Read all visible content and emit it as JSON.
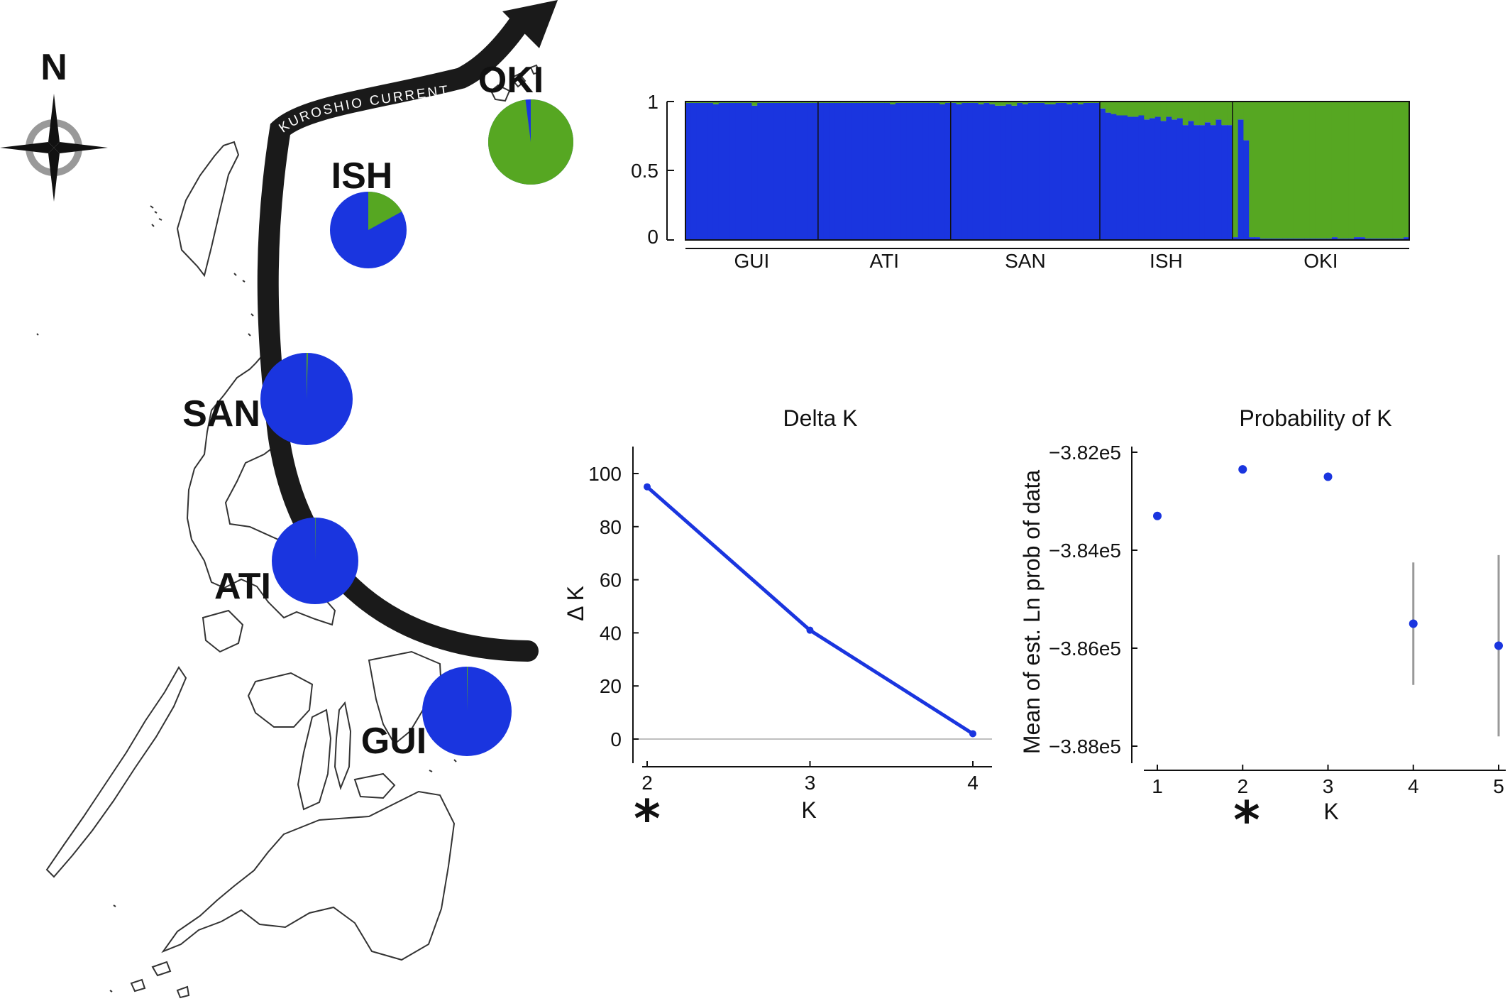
{
  "colors": {
    "cluster1": "#1a35df",
    "cluster2": "#56a722",
    "current": "#1a1a1a",
    "error_bar": "#999999"
  },
  "map": {
    "compass_label": "N",
    "current_label": "KUROSHIO CURRENT",
    "sites": [
      {
        "label": "OKI",
        "blue": 0.02,
        "green": 0.98
      },
      {
        "label": "ISH",
        "blue": 0.83,
        "green": 0.17
      },
      {
        "label": "SAN",
        "blue": 0.995,
        "green": 0.005
      },
      {
        "label": "ATI",
        "blue": 0.998,
        "green": 0.002
      },
      {
        "label": "GUI",
        "blue": 0.997,
        "green": 0.003
      }
    ]
  },
  "chart_data": [
    {
      "type": "bar",
      "stacked": true,
      "ylim": [
        0,
        1
      ],
      "yticks": [
        "0",
        "0.5",
        "1"
      ],
      "groups": [
        "GUI",
        "ATI",
        "SAN",
        "ISH",
        "OKI"
      ],
      "series": [
        {
          "name": "",
          "color": "#1a35df",
          "values": [
            [
              0.99,
              0.99,
              0.99,
              0.99,
              0.99,
              0.98,
              0.99,
              0.99,
              0.99,
              0.99,
              0.99,
              0.99,
              0.97,
              0.99,
              0.99,
              0.99,
              0.99,
              0.99,
              0.99,
              0.99,
              0.99,
              0.99,
              0.99,
              0.99
            ],
            [
              0.99,
              0.99,
              0.99,
              0.99,
              0.99,
              0.99,
              0.99,
              0.99,
              0.99,
              0.99,
              0.99,
              0.99,
              0.99,
              0.98,
              0.99,
              0.99,
              0.99,
              0.99,
              0.99,
              0.99,
              0.99,
              0.99,
              0.98,
              0.99
            ],
            [
              0.99,
              0.98,
              0.99,
              0.99,
              0.99,
              0.98,
              0.99,
              0.98,
              0.97,
              0.97,
              0.98,
              0.97,
              0.99,
              0.98,
              0.99,
              0.99,
              0.99,
              0.98,
              0.98,
              0.99,
              0.99,
              0.98,
              0.99,
              0.98,
              0.99,
              0.99,
              0.99
            ],
            [
              0.95,
              0.92,
              0.91,
              0.9,
              0.9,
              0.89,
              0.89,
              0.9,
              0.87,
              0.88,
              0.89,
              0.86,
              0.89,
              0.87,
              0.88,
              0.83,
              0.86,
              0.83,
              0.83,
              0.85,
              0.83,
              0.87,
              0.83,
              0.83
            ],
            [
              0.02,
              0.87,
              0.72,
              0.02,
              0.02,
              0.01,
              0.01,
              0.01,
              0.01,
              0.01,
              0.01,
              0.01,
              0.01,
              0.01,
              0.01,
              0.01,
              0.01,
              0.01,
              0.02,
              0.01,
              0.01,
              0.01,
              0.02,
              0.02,
              0.01,
              0.01,
              0.01,
              0.01,
              0.01,
              0.01,
              0.01,
              0.02
            ]
          ]
        },
        {
          "name": "",
          "color": "#56a722",
          "values": "remainder"
        }
      ]
    },
    {
      "type": "line",
      "title": "Delta K",
      "xlabel": "K",
      "ylabel": "Δ K",
      "x": [
        2,
        3,
        4
      ],
      "y": [
        95,
        41,
        2
      ],
      "xlim": [
        2,
        4
      ],
      "ylim": [
        0,
        100
      ],
      "yticks": [
        0,
        20,
        40,
        60,
        80,
        100
      ],
      "marker_below_x": "*"
    },
    {
      "type": "scatter",
      "title": "Probability of K",
      "xlabel": "K",
      "ylabel": "Mean of est. Ln prob of data",
      "x": [
        1,
        2,
        3,
        4,
        5
      ],
      "y": [
        -383300,
        -382350,
        -382500,
        -385500,
        -385950
      ],
      "yerr": [
        0,
        0,
        0,
        1250,
        1850
      ],
      "ylim": [
        -388000,
        -382000
      ],
      "yticks": [
        "−3.82e5",
        "−3.84e5",
        "−3.86e5",
        "−3.88e5"
      ],
      "marker_below_x": "*"
    }
  ]
}
